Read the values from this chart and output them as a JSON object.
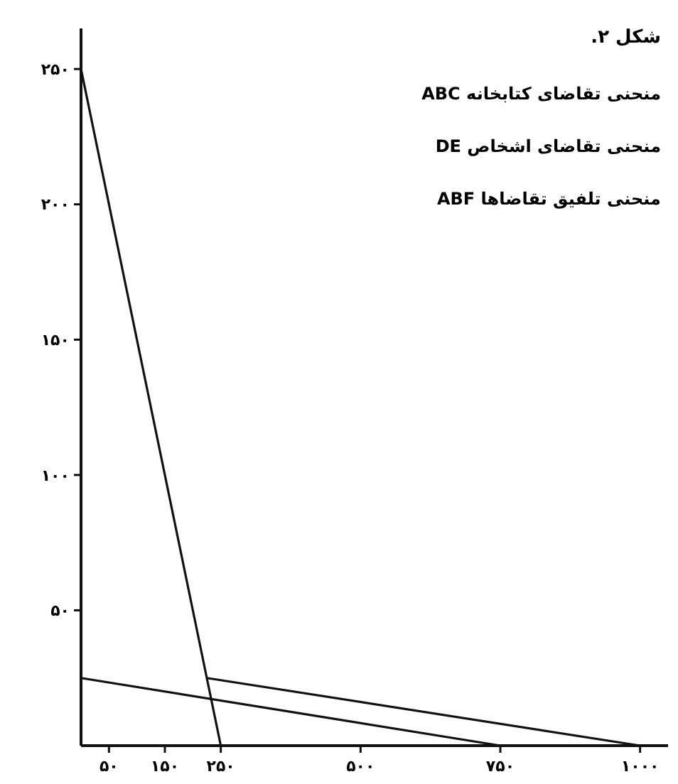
{
  "chart_data": {
    "type": "line",
    "title": "شکل ۲.",
    "annotations": [
      "منحنی تقاضای کتابخانه ABC",
      "منحنی تقاضای اشخاص DE",
      "منحنی تلفیق تقاضاها ABF"
    ],
    "series": [
      {
        "color": "#111111",
        "x": [
          0,
          250
        ],
        "values": [
          250,
          0
        ]
      },
      {
        "color": "#111111",
        "x": [
          0,
          750
        ],
        "values": [
          25,
          0
        ]
      },
      {
        "color": "#111111",
        "x": [
          225,
          1000
        ],
        "values": [
          25,
          0
        ]
      }
    ],
    "xlim": [
      0,
      1050
    ],
    "ylim": [
      0,
      265
    ],
    "xticks": [
      {
        "value": 50,
        "label": "۵۰"
      },
      {
        "value": 150,
        "label": "۱۵۰"
      },
      {
        "value": 250,
        "label": "۲۵۰"
      },
      {
        "value": 500,
        "label": "۵۰۰"
      },
      {
        "value": 750,
        "label": "۷۵۰"
      },
      {
        "value": 1000,
        "label": "۱۰۰۰"
      }
    ],
    "yticks": [
      {
        "value": 50,
        "label": "۵۰"
      },
      {
        "value": 100,
        "label": "۱۰۰"
      },
      {
        "value": 150,
        "label": "۱۵۰"
      },
      {
        "value": 200,
        "label": "۲۰۰"
      },
      {
        "value": 250,
        "label": "۲۵۰"
      }
    ],
    "grid": false,
    "marker": "none",
    "line_style": "solid"
  }
}
